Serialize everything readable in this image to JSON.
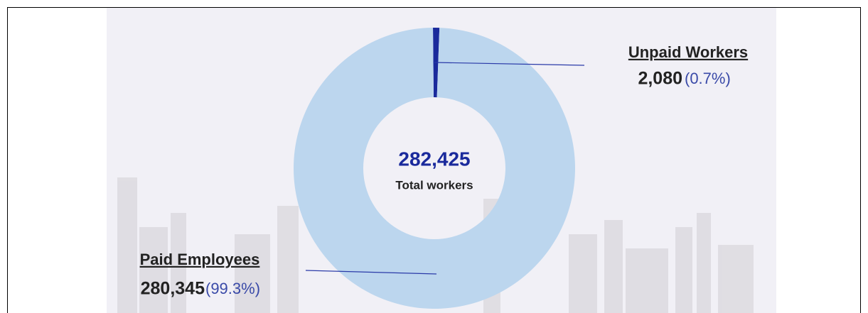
{
  "chart_data": {
    "type": "donut",
    "categories": [
      "Paid Employees",
      "Unpaid Workers"
    ],
    "values": [
      280345,
      2080
    ],
    "value_labels": [
      "280,345",
      "2,080"
    ],
    "percent_labels": [
      "(99.3%)",
      "(0.7%)"
    ],
    "colors": [
      "#bcd6ee",
      "#1a2a9c"
    ],
    "center_label": "282,425",
    "center_sublabel": "Total workers"
  }
}
